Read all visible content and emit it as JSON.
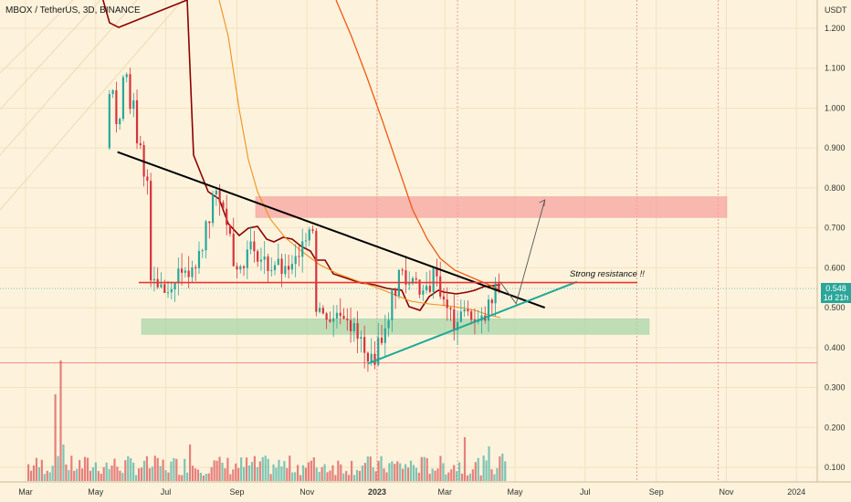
{
  "header": {
    "title": "MBOX / TetherUS, 3D, BINANCE"
  },
  "price_tag": {
    "price": "0.548",
    "countdown": "1d 21h"
  },
  "colors": {
    "background": "#fdf3dc",
    "up": "#2aa69a",
    "down": "#d6333d",
    "trendline_down": "#000000",
    "trendline_up": "#1fa897",
    "resistance_line": "#e53935",
    "resistance_zone": "#f7a3a0",
    "support_zone": "#a5d6a7",
    "kijun": "#8b0000",
    "ma_fast": "#f0901e",
    "ma_slow": "#f05a14"
  },
  "annotations": {
    "resistance_label": "Strong resistance !!"
  },
  "chart_data": {
    "type": "candlestick",
    "title": "MBOX / TetherUS, 3D, BINANCE",
    "y_axis": {
      "unit": "USDT",
      "ticks": [
        "1.200",
        "1.100",
        "1.000",
        "0.900",
        "0.800",
        "0.700",
        "0.600",
        "0.500",
        "0.400",
        "0.300",
        "0.200",
        "0.100"
      ]
    },
    "x_axis": {
      "ticks": [
        "Mar",
        "May",
        "Jul",
        "Sep",
        "Nov",
        "2023",
        "Mar",
        "May",
        "Jul",
        "Sep",
        "Nov",
        "2024"
      ]
    },
    "last_price": 0.548,
    "levels": {
      "strong_resistance": 0.563,
      "resistance_zone": [
        0.726,
        0.778
      ],
      "support_zone": [
        0.433,
        0.472
      ],
      "low_line": 0.362
    },
    "trendlines": [
      {
        "name": "descending",
        "from": [
          "2022-05-20",
          0.89
        ],
        "to": [
          "2023-05-27",
          0.5
        ]
      },
      {
        "name": "ascending",
        "from": [
          "2022-12-24",
          0.36
        ],
        "to": [
          "2023-06-24",
          0.565
        ]
      }
    ],
    "projection": [
      [
        "2023-04-18",
        0.565
      ],
      [
        "2023-05-02",
        0.51
      ],
      [
        "2023-05-27",
        0.77
      ]
    ],
    "pattern": [
      {
        "t": "2022-05-13",
        "c": 1.05
      },
      {
        "t": "2022-05-19",
        "c": 0.96
      },
      {
        "t": "2022-05-25",
        "c": 1.09
      },
      {
        "t": "2022-05-31",
        "c": 1.01
      },
      {
        "t": "2022-06-06",
        "c": 0.9
      },
      {
        "t": "2022-06-12",
        "c": 0.82
      },
      {
        "t": "2022-06-18",
        "c": 0.58
      },
      {
        "t": "2022-06-24",
        "c": 0.56
      },
      {
        "t": "2022-06-30",
        "c": 0.54
      },
      {
        "t": "2022-07-06",
        "c": 0.56
      },
      {
        "t": "2022-07-12",
        "c": 0.6
      },
      {
        "t": "2022-07-18",
        "c": 0.58
      },
      {
        "t": "2022-07-24",
        "c": 0.59
      },
      {
        "t": "2022-07-30",
        "c": 0.64
      },
      {
        "t": "2022-08-05",
        "c": 0.72
      },
      {
        "t": "2022-08-11",
        "c": 0.78
      },
      {
        "t": "2022-08-17",
        "c": 0.76
      },
      {
        "t": "2022-08-23",
        "c": 0.7
      },
      {
        "t": "2022-08-29",
        "c": 0.61
      },
      {
        "t": "2022-09-04",
        "c": 0.6
      },
      {
        "t": "2022-09-10",
        "c": 0.66
      },
      {
        "t": "2022-09-16",
        "c": 0.63
      },
      {
        "t": "2022-09-22",
        "c": 0.62
      },
      {
        "t": "2022-09-28",
        "c": 0.6
      },
      {
        "t": "2022-10-04",
        "c": 0.61
      },
      {
        "t": "2022-10-10",
        "c": 0.59
      },
      {
        "t": "2022-10-16",
        "c": 0.6
      },
      {
        "t": "2022-10-22",
        "c": 0.62
      },
      {
        "t": "2022-10-28",
        "c": 0.68
      },
      {
        "t": "2022-11-03",
        "c": 0.7
      },
      {
        "t": "2022-11-09",
        "c": 0.5
      },
      {
        "t": "2022-11-15",
        "c": 0.48
      },
      {
        "t": "2022-11-21",
        "c": 0.47
      },
      {
        "t": "2022-11-27",
        "c": 0.49
      },
      {
        "t": "2022-12-03",
        "c": 0.48
      },
      {
        "t": "2022-12-09",
        "c": 0.45
      },
      {
        "t": "2022-12-15",
        "c": 0.42
      },
      {
        "t": "2022-12-21",
        "c": 0.38
      },
      {
        "t": "2022-12-27",
        "c": 0.37
      },
      {
        "t": "2023-01-02",
        "c": 0.42
      },
      {
        "t": "2023-01-08",
        "c": 0.46
      },
      {
        "t": "2023-01-14",
        "c": 0.54
      },
      {
        "t": "2023-01-20",
        "c": 0.59
      },
      {
        "t": "2023-01-26",
        "c": 0.56
      },
      {
        "t": "2023-02-01",
        "c": 0.58
      },
      {
        "t": "2023-02-07",
        "c": 0.53
      },
      {
        "t": "2023-02-13",
        "c": 0.55
      },
      {
        "t": "2023-02-19",
        "c": 0.59
      },
      {
        "t": "2023-02-25",
        "c": 0.53
      },
      {
        "t": "2023-03-03",
        "c": 0.49
      },
      {
        "t": "2023-03-09",
        "c": 0.45
      },
      {
        "t": "2023-03-15",
        "c": 0.5
      },
      {
        "t": "2023-03-21",
        "c": 0.48
      },
      {
        "t": "2023-03-27",
        "c": 0.46
      },
      {
        "t": "2023-04-02",
        "c": 0.47
      },
      {
        "t": "2023-04-08",
        "c": 0.51
      },
      {
        "t": "2023-04-14",
        "c": 0.548
      }
    ]
  }
}
